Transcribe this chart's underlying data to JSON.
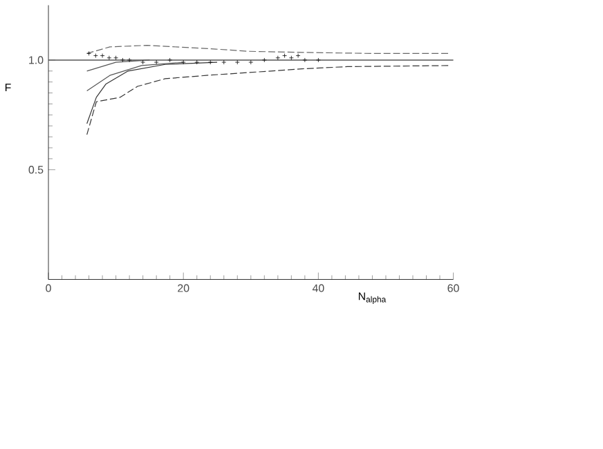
{
  "chart_data": {
    "type": "line",
    "xlabel": "N$_{alpha}$",
    "ylabel": "F",
    "xlim": [
      0,
      60
    ],
    "xticks": [
      0,
      20,
      40,
      60
    ],
    "ylim": [
      0,
      1.25
    ],
    "yticks": [
      {
        "value": 0.5,
        "label": "0.5"
      },
      {
        "value": 1.0,
        "label": "1.0"
      }
    ],
    "grid": false,
    "ref_lines": [
      {
        "axis": "y",
        "value": 1.0,
        "color": "#555555"
      }
    ],
    "series": [
      {
        "line_style": "dashed",
        "color": "#333333",
        "x": [
          5.7,
          7.1,
          10.6,
          13.2,
          17.3,
          23.4,
          33,
          37.6,
          44.3,
          59.4
        ],
        "values": [
          0.66,
          0.81,
          0.83,
          0.88,
          0.915,
          0.93,
          0.95,
          0.96,
          0.97,
          0.975
        ]
      },
      {
        "line_style": "solid",
        "color": "#333333",
        "x": [
          5.7,
          7.1,
          8.5,
          11.8,
          17.3,
          25
        ],
        "values": [
          0.71,
          0.83,
          0.89,
          0.95,
          0.98,
          0.99
        ]
      },
      {
        "line_style": "solid",
        "color": "#555555",
        "x": [
          5.7,
          9.1,
          13.8,
          20
        ],
        "values": [
          0.86,
          0.93,
          0.975,
          0.99
        ]
      },
      {
        "line_style": "solid",
        "color": "#555555",
        "x": [
          5.7,
          10,
          15
        ],
        "values": [
          0.95,
          0.99,
          1.0
        ]
      },
      {
        "line_style": "dashed",
        "color": "#666666",
        "x": [
          5.7,
          9.1,
          14.6,
          24.8,
          29.5,
          37.6,
          47.8,
          59.4
        ],
        "values": [
          1.03,
          1.06,
          1.067,
          1.05,
          1.04,
          1.035,
          1.03,
          1.03
        ]
      },
      {
        "type": "scatter",
        "marker": "cross",
        "color": "#000000",
        "x": [
          6,
          7,
          8,
          9,
          10,
          11,
          12,
          14,
          16,
          18,
          20,
          22,
          24,
          26,
          28,
          30,
          32,
          34,
          35,
          36,
          37,
          38,
          40
        ],
        "values": [
          1.03,
          1.02,
          1.02,
          1.01,
          1.01,
          1.0,
          1.0,
          0.99,
          0.99,
          1.0,
          0.99,
          0.99,
          0.99,
          0.99,
          0.99,
          0.99,
          1.0,
          1.01,
          1.02,
          1.01,
          1.02,
          1.0,
          1.0
        ]
      }
    ]
  }
}
